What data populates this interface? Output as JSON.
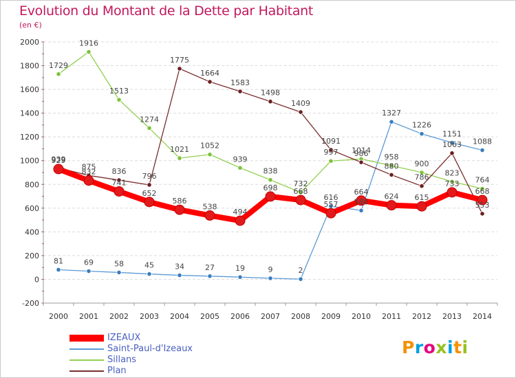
{
  "header": {
    "title": "Evolution du Montant de la Dette par Habitant",
    "subtitle": "(en €)"
  },
  "legend": {
    "items": [
      {
        "label": "IZEAUX",
        "color": "#ff0000"
      },
      {
        "label": "Saint-Paul-d'Izeaux",
        "color": "#5b9bd5"
      },
      {
        "label": "Sillans",
        "color": "#92d050"
      },
      {
        "label": "Plan",
        "color": "#7b2d2d"
      }
    ]
  },
  "logo": {
    "letters": [
      {
        "ch": "P",
        "color": "#f39200"
      },
      {
        "ch": "r",
        "color": "#009fe3"
      },
      {
        "ch": "o",
        "color": "#e6007e"
      },
      {
        "ch": "x",
        "color": "#95c11f"
      },
      {
        "ch": "i",
        "color": "#009fe3"
      },
      {
        "ch": "t",
        "color": "#f39200"
      },
      {
        "ch": "i",
        "color": "#95c11f"
      }
    ]
  },
  "chart_data": {
    "type": "line",
    "title": "Evolution du Montant de la Dette par Habitant",
    "subtitle": "(en €)",
    "xlabel": "",
    "ylabel": "",
    "ylim": [
      -200,
      2000
    ],
    "yticks": [
      "-200",
      "0",
      "200",
      "400",
      "600",
      "800",
      "1000",
      "1200",
      "1400",
      "1600",
      "1800",
      "2000"
    ],
    "x": [
      "2000",
      "2001",
      "2002",
      "2003",
      "2004",
      "2005",
      "2006",
      "2007",
      "2008",
      "2009",
      "2010",
      "2011",
      "2012",
      "2013",
      "2014"
    ],
    "grid": "horizontal",
    "legend_position": "bottom-left",
    "series": [
      {
        "name": "IZEAUX",
        "color": "#ff0000",
        "marker": "#e31a1c",
        "values": [
          929,
          832,
          741,
          652,
          586,
          538,
          494,
          698,
          668,
          557,
          664,
          624,
          615,
          733,
          668
        ],
        "labels": [
          "929",
          "832",
          "741",
          "652",
          "586",
          "538",
          "494",
          "698",
          "668",
          "557",
          "664",
          "624",
          "615",
          "733",
          "668"
        ]
      },
      {
        "name": "Saint-Paul-d'Izeaux",
        "color": "#5b9bd5",
        "marker": "#3a7dbf",
        "values": [
          81,
          69,
          58,
          45,
          34,
          27,
          19,
          9,
          2,
          616,
          580,
          1327,
          1226,
          1151,
          1088
        ],
        "labels": [
          "81",
          "69",
          "58",
          "45",
          "34",
          "27",
          "19",
          "9",
          "2",
          "616",
          "580",
          "1327",
          "1226",
          "1151",
          "1088"
        ]
      },
      {
        "name": "Sillans",
        "color": "#92d050",
        "marker": "#7cc23b",
        "values": [
          1729,
          1916,
          1513,
          1274,
          1021,
          1052,
          939,
          838,
          732,
          997,
          1014,
          958,
          900,
          823,
          764
        ],
        "labels": [
          "1729",
          "1916",
          "1513",
          "1274",
          "1021",
          "1052",
          "939",
          "838",
          "732",
          "997",
          "1014",
          "958",
          "900",
          "823",
          "764"
        ]
      },
      {
        "name": "Plan",
        "color": "#7b2d2d",
        "marker": "#6b1f1f",
        "values": [
          939,
          875,
          836,
          796,
          1775,
          1664,
          1583,
          1498,
          1409,
          1091,
          986,
          880,
          786,
          1063,
          553
        ],
        "labels": [
          "939",
          "875",
          "836",
          "796",
          "1775",
          "1664",
          "1583",
          "1498",
          "1409",
          "1091",
          "986",
          "880",
          "786",
          "1063",
          "553"
        ]
      }
    ]
  }
}
